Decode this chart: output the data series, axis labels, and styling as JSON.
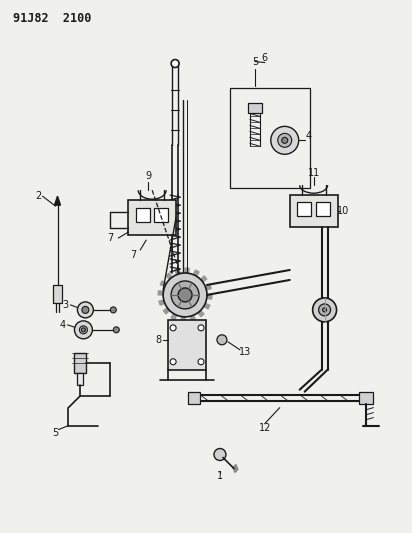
{
  "title": "91J82  2100",
  "bg_color": "#f0f0ec",
  "line_color": "#1a1a1a",
  "fig_width": 4.12,
  "fig_height": 5.33,
  "dpi": 100
}
